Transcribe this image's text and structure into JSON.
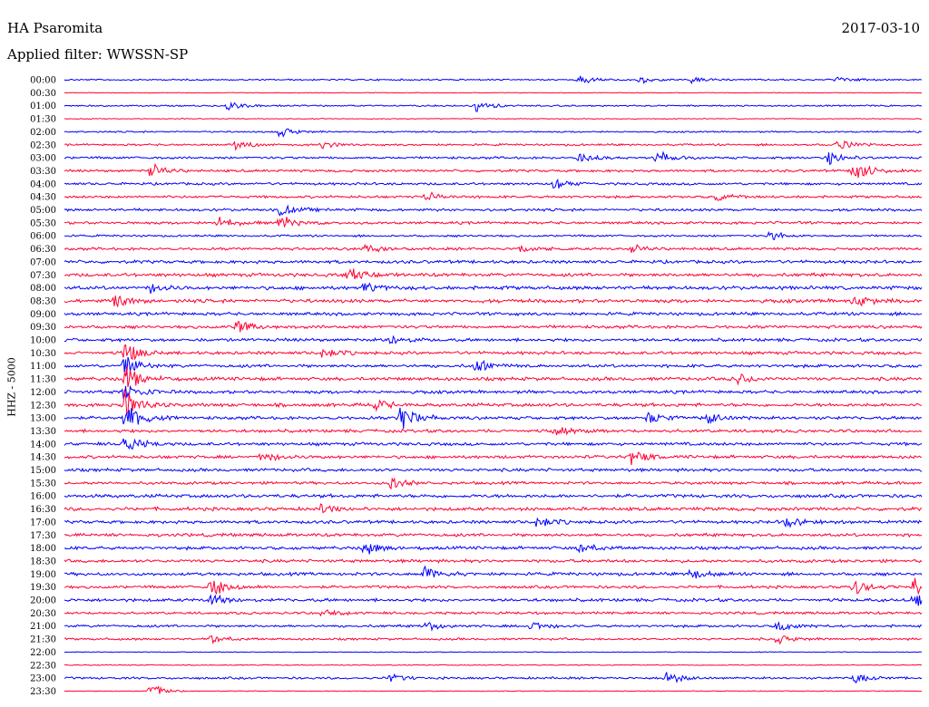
{
  "header": {
    "station": "HA Psaromita",
    "date": "2017-03-10",
    "filter_label": "Applied filter: WWSSN-SP"
  },
  "chart_data": {
    "type": "line",
    "title": "HA Psaromita",
    "subtitle": "Applied filter: WWSSN-SP",
    "date": "2017-03-10",
    "ylabel": "HHZ - 5000",
    "xlabel": "",
    "row_interval_minutes": 30,
    "colors": [
      "#0000ff",
      "#ff0033"
    ],
    "row_times": [
      "00:00",
      "00:30",
      "01:00",
      "01:30",
      "02:00",
      "02:30",
      "03:00",
      "03:30",
      "04:00",
      "04:30",
      "05:00",
      "05:30",
      "06:00",
      "06:30",
      "07:00",
      "07:30",
      "08:00",
      "08:30",
      "09:00",
      "09:30",
      "10:00",
      "10:30",
      "11:00",
      "11:30",
      "12:00",
      "12:30",
      "13:00",
      "13:30",
      "14:00",
      "14:30",
      "15:00",
      "15:30",
      "16:00",
      "16:30",
      "17:00",
      "17:30",
      "18:00",
      "18:30",
      "19:00",
      "19:30",
      "20:00",
      "20:30",
      "21:00",
      "21:30",
      "22:00",
      "22:30",
      "23:00",
      "23:30"
    ],
    "noise_level": [
      1,
      0.4,
      1,
      0.5,
      1,
      1.3,
      1.5,
      1.6,
      1.6,
      1.6,
      1.7,
      1.7,
      1.3,
      1.7,
      2,
      2.2,
      2.3,
      2.3,
      2,
      2,
      2,
      2,
      2,
      2.2,
      2,
      2.2,
      2,
      2,
      2,
      2,
      2,
      1.8,
      2.2,
      2.2,
      2,
      2,
      2,
      2,
      2,
      1.8,
      2,
      1.6,
      1.6,
      1.4,
      0.5,
      0.6,
      1.4,
      0.5
    ],
    "events": [
      {
        "row": 0,
        "t": 0.6,
        "amp": 6
      },
      {
        "row": 0,
        "t": 0.67,
        "amp": 5
      },
      {
        "row": 0,
        "t": 0.73,
        "amp": 4
      },
      {
        "row": 0,
        "t": 0.9,
        "amp": 4
      },
      {
        "row": 2,
        "t": 0.19,
        "amp": 7
      },
      {
        "row": 2,
        "t": 0.48,
        "amp": 7
      },
      {
        "row": 4,
        "t": 0.25,
        "amp": 7
      },
      {
        "row": 5,
        "t": 0.2,
        "amp": 6
      },
      {
        "row": 5,
        "t": 0.3,
        "amp": 5
      },
      {
        "row": 5,
        "t": 0.9,
        "amp": 7
      },
      {
        "row": 6,
        "t": 0.6,
        "amp": 6
      },
      {
        "row": 6,
        "t": 0.69,
        "amp": 8
      },
      {
        "row": 6,
        "t": 0.89,
        "amp": 9
      },
      {
        "row": 7,
        "t": 0.1,
        "amp": 9
      },
      {
        "row": 7,
        "t": 0.92,
        "amp": 15
      },
      {
        "row": 8,
        "t": 0.57,
        "amp": 7
      },
      {
        "row": 9,
        "t": 0.42,
        "amp": 6
      },
      {
        "row": 9,
        "t": 0.76,
        "amp": 5
      },
      {
        "row": 10,
        "t": 0.25,
        "amp": 8
      },
      {
        "row": 11,
        "t": 0.25,
        "amp": 10
      },
      {
        "row": 11,
        "t": 0.18,
        "amp": 8
      },
      {
        "row": 12,
        "t": 0.82,
        "amp": 7
      },
      {
        "row": 13,
        "t": 0.35,
        "amp": 5
      },
      {
        "row": 13,
        "t": 0.53,
        "amp": 6
      },
      {
        "row": 13,
        "t": 0.66,
        "amp": 5
      },
      {
        "row": 15,
        "t": 0.33,
        "amp": 8
      },
      {
        "row": 16,
        "t": 0.35,
        "amp": 7
      },
      {
        "row": 16,
        "t": 0.1,
        "amp": 6
      },
      {
        "row": 17,
        "t": 0.06,
        "amp": 8
      },
      {
        "row": 17,
        "t": 0.92,
        "amp": 8
      },
      {
        "row": 19,
        "t": 0.2,
        "amp": 9
      },
      {
        "row": 20,
        "t": 0.38,
        "amp": 6
      },
      {
        "row": 21,
        "t": 0.07,
        "amp": 14
      },
      {
        "row": 21,
        "t": 0.3,
        "amp": 7
      },
      {
        "row": 22,
        "t": 0.07,
        "amp": 14
      },
      {
        "row": 22,
        "t": 0.48,
        "amp": 8
      },
      {
        "row": 23,
        "t": 0.07,
        "amp": 18
      },
      {
        "row": 23,
        "t": 0.78,
        "amp": 8
      },
      {
        "row": 24,
        "t": 0.07,
        "amp": 14
      },
      {
        "row": 25,
        "t": 0.07,
        "amp": 20
      },
      {
        "row": 25,
        "t": 0.36,
        "amp": 7
      },
      {
        "row": 26,
        "t": 0.07,
        "amp": 22
      },
      {
        "row": 26,
        "t": 0.39,
        "amp": 20
      },
      {
        "row": 26,
        "t": 0.68,
        "amp": 7
      },
      {
        "row": 26,
        "t": 0.75,
        "amp": 7
      },
      {
        "row": 27,
        "t": 0.57,
        "amp": 8
      },
      {
        "row": 28,
        "t": 0.07,
        "amp": 12
      },
      {
        "row": 29,
        "t": 0.23,
        "amp": 7
      },
      {
        "row": 29,
        "t": 0.66,
        "amp": 10
      },
      {
        "row": 31,
        "t": 0.38,
        "amp": 7
      },
      {
        "row": 33,
        "t": 0.3,
        "amp": 6
      },
      {
        "row": 34,
        "t": 0.55,
        "amp": 8
      },
      {
        "row": 34,
        "t": 0.84,
        "amp": 7
      },
      {
        "row": 36,
        "t": 0.35,
        "amp": 9
      },
      {
        "row": 36,
        "t": 0.6,
        "amp": 7
      },
      {
        "row": 38,
        "t": 0.42,
        "amp": 8
      },
      {
        "row": 38,
        "t": 0.73,
        "amp": 7
      },
      {
        "row": 39,
        "t": 0.17,
        "amp": 14
      },
      {
        "row": 39,
        "t": 0.92,
        "amp": 10
      },
      {
        "row": 39,
        "t": 0.99,
        "amp": 14
      },
      {
        "row": 40,
        "t": 0.17,
        "amp": 8
      },
      {
        "row": 40,
        "t": 0.99,
        "amp": 10
      },
      {
        "row": 41,
        "t": 0.3,
        "amp": 6
      },
      {
        "row": 42,
        "t": 0.42,
        "amp": 7
      },
      {
        "row": 42,
        "t": 0.54,
        "amp": 8
      },
      {
        "row": 42,
        "t": 0.83,
        "amp": 7
      },
      {
        "row": 43,
        "t": 0.17,
        "amp": 6
      },
      {
        "row": 43,
        "t": 0.83,
        "amp": 6
      },
      {
        "row": 46,
        "t": 0.38,
        "amp": 6
      },
      {
        "row": 46,
        "t": 0.7,
        "amp": 9
      },
      {
        "row": 46,
        "t": 0.92,
        "amp": 6
      },
      {
        "row": 47,
        "t": 0.1,
        "amp": 10
      }
    ]
  }
}
